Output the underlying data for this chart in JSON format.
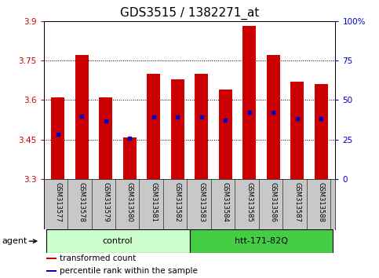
{
  "title": "GDS3515 / 1382271_at",
  "samples": [
    "GSM313577",
    "GSM313578",
    "GSM313579",
    "GSM313580",
    "GSM313581",
    "GSM313582",
    "GSM313583",
    "GSM313584",
    "GSM313585",
    "GSM313586",
    "GSM313587",
    "GSM313588"
  ],
  "bar_values": [
    3.61,
    3.77,
    3.61,
    3.46,
    3.7,
    3.68,
    3.7,
    3.64,
    3.88,
    3.77,
    3.67,
    3.66
  ],
  "percentile_values": [
    3.47,
    3.54,
    3.52,
    3.455,
    3.535,
    3.535,
    3.535,
    3.525,
    3.555,
    3.555,
    3.53,
    3.53
  ],
  "bar_base": 3.3,
  "ylim_left": [
    3.3,
    3.9
  ],
  "ylim_right": [
    0,
    100
  ],
  "yticks_left": [
    3.3,
    3.45,
    3.6,
    3.75,
    3.9
  ],
  "yticks_right": [
    0,
    25,
    50,
    75,
    100
  ],
  "ytick_labels_left": [
    "3.3",
    "3.45",
    "3.6",
    "3.75",
    "3.9"
  ],
  "ytick_labels_right": [
    "0",
    "25",
    "50",
    "75",
    "100%"
  ],
  "bar_color": "#CC0000",
  "blue_color": "#0000CC",
  "grid_color": "#000000",
  "bg_color": "#FFFFFF",
  "bar_width": 0.55,
  "groups": [
    {
      "label": "control",
      "start": 0,
      "end": 5,
      "color": "#CCFFCC"
    },
    {
      "label": "htt-171-82Q",
      "start": 6,
      "end": 11,
      "color": "#44CC44"
    }
  ],
  "agent_label": "agent",
  "legend_items": [
    {
      "color": "#CC0000",
      "label": "transformed count"
    },
    {
      "color": "#0000CC",
      "label": "percentile rank within the sample"
    }
  ],
  "title_fontsize": 11,
  "tick_fontsize": 7.5,
  "sample_fontsize": 6.0,
  "group_fontsize": 8,
  "legend_fontsize": 7.5,
  "agent_fontsize": 8,
  "right_axis_color": "#0000CC",
  "label_area_color": "#C8C8C8"
}
